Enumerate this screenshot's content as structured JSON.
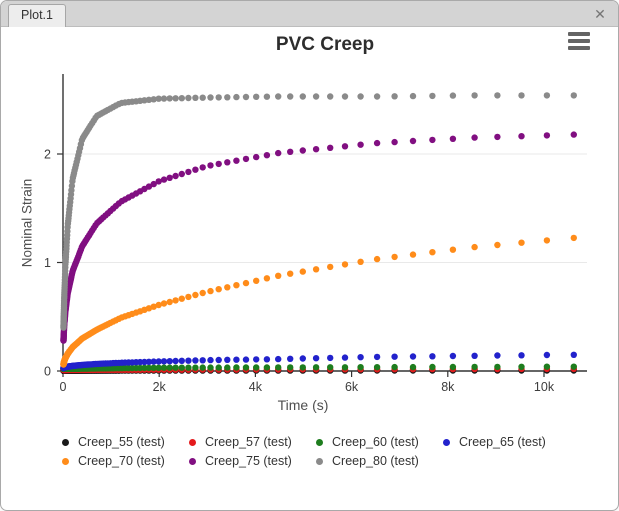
{
  "window": {
    "tab_label": "Plot.1",
    "close_icon": "✕"
  },
  "chart_data": {
    "type": "scatter",
    "title": "PVC Creep",
    "xlabel": "Time (s)",
    "ylabel": "Nominal Strain",
    "xlim": [
      0,
      10700
    ],
    "ylim": [
      0,
      2.75
    ],
    "xticks": {
      "values": [
        0,
        2000,
        4000,
        6000,
        8000,
        10000
      ],
      "labels": [
        "0",
        "2k",
        "4k",
        "6k",
        "8k",
        "10k"
      ]
    },
    "yticks": {
      "values": [
        0,
        1,
        2
      ],
      "labels": [
        "0",
        "1",
        "2"
      ]
    },
    "grid": "horizontal gridlines at y=1 and y=2 only",
    "legend_position": "bottom",
    "sampling": {
      "type": "geometric",
      "t_start": 10,
      "ratio": 1.0555,
      "count": 130
    },
    "series": [
      {
        "name": "Creep_55 (test)",
        "color": "#1a1a1a",
        "anchors": [
          [
            10,
            0.003
          ],
          [
            10700,
            0.005
          ]
        ]
      },
      {
        "name": "Creep_57 (test)",
        "color": "#e41a1c",
        "anchors": [
          [
            10,
            0.01
          ],
          [
            10700,
            0.02
          ]
        ]
      },
      {
        "name": "Creep_60 (test)",
        "color": "#1e7d1e",
        "anchors": [
          [
            10,
            0.02
          ],
          [
            2000,
            0.03
          ],
          [
            10700,
            0.04
          ]
        ]
      },
      {
        "name": "Creep_65 (test)",
        "color": "#2222cc",
        "anchors": [
          [
            10,
            0.028
          ],
          [
            25,
            0.032
          ],
          [
            50,
            0.036
          ],
          [
            100,
            0.04
          ],
          [
            200,
            0.047
          ],
          [
            400,
            0.056
          ],
          [
            700,
            0.065
          ],
          [
            1200,
            0.076
          ],
          [
            2000,
            0.088
          ],
          [
            3000,
            0.1
          ],
          [
            4500,
            0.11
          ],
          [
            6500,
            0.13
          ],
          [
            8500,
            0.14
          ],
          [
            10700,
            0.15
          ]
        ]
      },
      {
        "name": "Creep_70 (test)",
        "color": "#ff8c1a",
        "anchors": [
          [
            10,
            0.06
          ],
          [
            25,
            0.09
          ],
          [
            50,
            0.12
          ],
          [
            100,
            0.16
          ],
          [
            200,
            0.22
          ],
          [
            400,
            0.3
          ],
          [
            700,
            0.38
          ],
          [
            1200,
            0.49
          ],
          [
            2000,
            0.61
          ],
          [
            3000,
            0.73
          ],
          [
            4500,
            0.88
          ],
          [
            6500,
            1.03
          ],
          [
            8500,
            1.14
          ],
          [
            10700,
            1.23
          ]
        ]
      },
      {
        "name": "Creep_75 (test)",
        "color": "#810f81",
        "anchors": [
          [
            10,
            0.28
          ],
          [
            25,
            0.42
          ],
          [
            50,
            0.55
          ],
          [
            100,
            0.72
          ],
          [
            200,
            0.92
          ],
          [
            400,
            1.15
          ],
          [
            700,
            1.36
          ],
          [
            1200,
            1.56
          ],
          [
            2000,
            1.75
          ],
          [
            3000,
            1.89
          ],
          [
            4500,
            2.01
          ],
          [
            6500,
            2.1
          ],
          [
            8500,
            2.15
          ],
          [
            10700,
            2.18
          ]
        ]
      },
      {
        "name": "Creep_80 (test)",
        "color": "#8a8a8a",
        "anchors": [
          [
            10,
            0.4
          ],
          [
            25,
            0.67
          ],
          [
            50,
            0.98
          ],
          [
            100,
            1.35
          ],
          [
            200,
            1.77
          ],
          [
            400,
            2.14
          ],
          [
            700,
            2.35
          ],
          [
            1200,
            2.47
          ],
          [
            2000,
            2.51
          ],
          [
            3000,
            2.52
          ],
          [
            4500,
            2.53
          ],
          [
            6500,
            2.53
          ],
          [
            8500,
            2.54
          ],
          [
            10700,
            2.54
          ]
        ]
      }
    ]
  }
}
